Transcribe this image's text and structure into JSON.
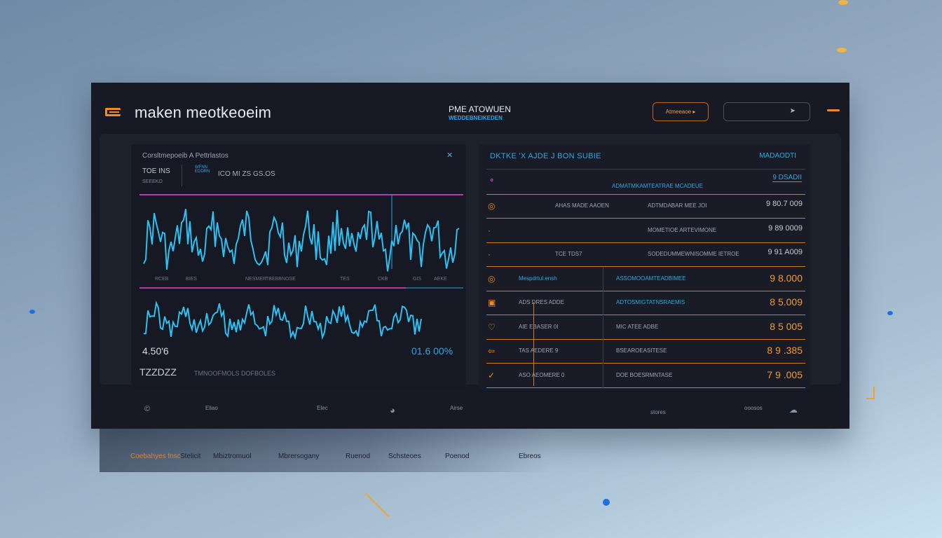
{
  "header": {
    "logo_icon": "e-logo-icon",
    "app_title": "maken meotkeoeim",
    "mid_title": "PME ATOWUEN",
    "mid_subtitle": "WEDDEBNEIKEDEN",
    "button_primary": "Atmeeaoe ▸",
    "button_secondary_icon": "chevron-right-icon",
    "menu_icon": "menu-icon"
  },
  "left_panel": {
    "title": "Corsltmepoeib  A  Pettrlastos",
    "close_icon": "x",
    "subtitle": "TOE INS",
    "caption": "SEEEKO",
    "tag": "WFNN\nEDDRN",
    "tabs": "ICO  MI  ZS     GS.OS",
    "axis_labels": [
      "RCEB",
      "BIES",
      "NESMER",
      "TBEBBNOSE",
      "TES",
      "CKB",
      "GIS",
      "AEKE"
    ],
    "value_left": "4.50'6",
    "value_right": "01.6 00%",
    "timestamp": "TZZDZZ",
    "timestamp_sub": "TMNOOFMOLS DOFBOLES"
  },
  "right_panel": {
    "title": "DKTKE 'X AJDE J BON SUBIE",
    "header_right": "MADAODTI",
    "top_value": "9 DSADII",
    "top_sub": "ADMATMKAMTEATRAE MCADEUE",
    "rows": [
      {
        "icon": "circle",
        "c1": "AHAS  MADE AAOEN",
        "c2": "ADTMDABAR MEE  JOI",
        "value": "9 80.7 009"
      },
      {
        "icon": "dot",
        "c1": "",
        "c2": "MOMETIOE  ARTEVIMONE",
        "value": "9 89 0009"
      },
      {
        "icon": "dot",
        "c1": "TCE   TDS7",
        "c2": "SODEDUMMEWNISOMME  IETROE",
        "value": "9 91 A009"
      },
      {
        "icon": "circle",
        "c1": "Mespdrtul.ensh",
        "c2": "ASSOMOOAMTEADBIMEE",
        "value": "9 8.000"
      },
      {
        "icon": "square",
        "c1": "ADS   DRES ADDE",
        "c2": "ADTOSMIGTATNSRAEMIS",
        "value": "8 5.009"
      },
      {
        "icon": "heart",
        "c1": "AIE   EBASER 0I",
        "c2": "MIC ATEE  ADBE",
        "value": "8 5  005"
      },
      {
        "icon": "arrow",
        "c1": "TAS   AEDERE 9",
        "c2": "BSEAROEASITESE",
        "value": "8 9 .385"
      },
      {
        "icon": "check",
        "c1": "ASO   AEOMERE 0",
        "c2": "DOE BOESRMNTASE",
        "value": "7 9 .005"
      }
    ]
  },
  "footer": {
    "items": [
      "©",
      "Eliao",
      "Elec",
      "◕",
      "Airse",
      "stores",
      "ooosos",
      "☁"
    ]
  },
  "bottom_menu": {
    "items": [
      "Coebahyes fnsc",
      "Stelicit",
      "Mbiztromuol",
      "Mbrersogany",
      "Ruenod",
      "Schsteoes",
      "Poenod",
      "Ebreos"
    ],
    "accent": "#f08a24"
  },
  "colors": {
    "accent_orange": "#f08a24",
    "accent_cyan": "#2ea8e0",
    "accent_pink": "#e04fd1",
    "panel_bg": "#171a24"
  }
}
